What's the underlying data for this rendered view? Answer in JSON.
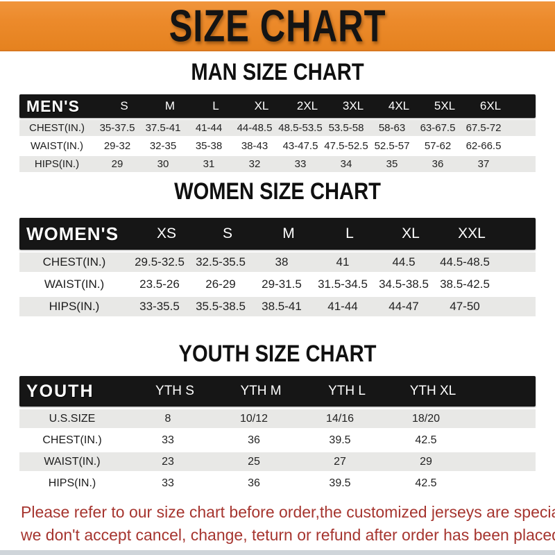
{
  "banner": {
    "title": "SIZE CHART",
    "bg_color": "#EC8A2B",
    "text_color": "#141414"
  },
  "colors": {
    "table_bar": "#161616",
    "stripe_row": "#E8E8E6",
    "footer_red": "#A6352F"
  },
  "sections": [
    {
      "id": "men",
      "heading": "MAN SIZE CHART",
      "table": {
        "label": "MEN'S",
        "columns": [
          "S",
          "M",
          "L",
          "XL",
          "2XL",
          "3XL",
          "4XL",
          "5XL",
          "6XL"
        ],
        "rows": [
          {
            "label": "CHEST(IN.)",
            "values": [
              "35-37.5",
              "37.5-41",
              "41-44",
              "44-48.5",
              "48.5-53.5",
              "53.5-58",
              "58-63",
              "63-67.5",
              "67.5-72"
            ]
          },
          {
            "label": "WAIST(IN.)",
            "values": [
              "29-32",
              "32-35",
              "35-38",
              "38-43",
              "43-47.5",
              "47.5-52.5",
              "52.5-57",
              "57-62",
              "62-66.5"
            ]
          },
          {
            "label": "HIPS(IN.)",
            "values": [
              "29",
              "30",
              "31",
              "32",
              "33",
              "34",
              "35",
              "36",
              "37"
            ]
          }
        ]
      }
    },
    {
      "id": "women",
      "heading": "WOMEN SIZE CHART",
      "table": {
        "label": "WOMEN'S",
        "columns": [
          "XS",
          "S",
          "M",
          "L",
          "XL",
          "XXL"
        ],
        "rows": [
          {
            "label": "CHEST(IN.)",
            "values": [
              "29.5-32.5",
              "32.5-35.5",
              "38",
              "41",
              "44.5",
              "44.5-48.5"
            ]
          },
          {
            "label": "WAIST(IN.)",
            "values": [
              "23.5-26",
              "26-29",
              "29-31.5",
              "31.5-34.5",
              "34.5-38.5",
              "38.5-42.5"
            ]
          },
          {
            "label": "HIPS(IN.)",
            "values": [
              "33-35.5",
              "35.5-38.5",
              "38.5-41",
              "41-44",
              "44-47",
              "47-50"
            ]
          }
        ]
      }
    },
    {
      "id": "youth",
      "heading": "YOUTH SIZE CHART",
      "table": {
        "label": "YOUTH",
        "columns": [
          "YTH S",
          "YTH M",
          "YTH L",
          "YTH XL"
        ],
        "rows": [
          {
            "label": "U.S.SIZE",
            "values": [
              "8",
              "10/12",
              "14/16",
              "18/20"
            ]
          },
          {
            "label": "CHEST(IN.)",
            "values": [
              "33",
              "36",
              "39.5",
              "42.5"
            ]
          },
          {
            "label": "WAIST(IN.)",
            "values": [
              "23",
              "25",
              "27",
              "29"
            ]
          },
          {
            "label": "HIPS(IN.)",
            "values": [
              "33",
              "36",
              "39.5",
              "42.5"
            ]
          }
        ]
      }
    }
  ],
  "footer": {
    "line1": "Please refer to our size chart before order,the customized jerseys are special products,",
    "line2": "we don't accept cancel, change, teturn or refund after order has been placed!"
  }
}
